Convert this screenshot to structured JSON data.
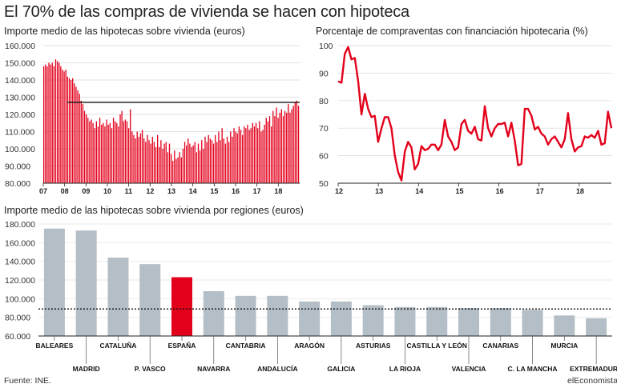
{
  "header": {
    "title": "El 70% de las compras de vivienda se hacen con hipoteca",
    "source": "Fuente: INE.",
    "brand": "elEconomista"
  },
  "colors": {
    "red": "#e3001b",
    "grey": "#b4bec6",
    "highlight": "#e3001b"
  },
  "chart_data": [
    {
      "type": "bar",
      "title": "Importe medio de las hipotecas sobre vivienda (euros)",
      "ylim": [
        80000,
        160000
      ],
      "y_ticks": [
        "160.000",
        "150.000",
        "140.000",
        "130.000",
        "120.000",
        "110.000",
        "100.000",
        "90.000",
        "80.000"
      ],
      "x_labels": [
        "07",
        "08",
        "09",
        "10",
        "11",
        "12",
        "13",
        "14",
        "15",
        "16",
        "17",
        "18"
      ],
      "reference_line": 127000,
      "values": [
        148000,
        149000,
        148000,
        150000,
        149000,
        150000,
        148000,
        152000,
        151000,
        150000,
        148000,
        146000,
        145000,
        146000,
        142000,
        141000,
        140000,
        141000,
        138000,
        136000,
        134000,
        132000,
        128000,
        126000,
        122000,
        120000,
        118000,
        116000,
        117000,
        115000,
        112000,
        116000,
        113000,
        118000,
        114000,
        115000,
        113000,
        117000,
        114000,
        115000,
        112000,
        118000,
        116000,
        115000,
        113000,
        120000,
        122000,
        116000,
        117000,
        116000,
        112000,
        123000,
        110000,
        108000,
        106000,
        110000,
        107000,
        109000,
        111000,
        106000,
        104000,
        108000,
        105000,
        103000,
        107000,
        104000,
        101000,
        108000,
        101000,
        105000,
        100000,
        103000,
        104000,
        98000,
        103000,
        97000,
        93000,
        99000,
        94000,
        95000,
        98000,
        95000,
        100000,
        104000,
        102000,
        106000,
        103000,
        101000,
        102000,
        104000,
        98000,
        103000,
        99000,
        105000,
        100000,
        107000,
        104000,
        108000,
        106000,
        105000,
        103000,
        108000,
        104000,
        110000,
        105000,
        112000,
        106000,
        103000,
        107000,
        104000,
        110000,
        107000,
        112000,
        110000,
        109000,
        113000,
        111000,
        108000,
        113000,
        112000,
        114000,
        111000,
        112000,
        115000,
        113000,
        115000,
        112000,
        116000,
        110000,
        111000,
        114000,
        118000,
        116000,
        119000,
        113000,
        122000,
        119000,
        124000,
        118000,
        121000,
        123000,
        119000,
        122000,
        121000,
        126000,
        121000,
        123000,
        125000,
        127000,
        128000,
        125000
      ]
    },
    {
      "type": "line",
      "title": "Porcentaje de compraventas con financiación hipotecaria (%)",
      "ylim": [
        50,
        100
      ],
      "y_ticks": [
        "100",
        "90",
        "80",
        "70",
        "60",
        "50"
      ],
      "x_labels": [
        "12",
        "13",
        "14",
        "15",
        "16",
        "17",
        "18"
      ],
      "values": [
        87,
        86.5,
        97,
        99.5,
        95,
        95.5,
        87,
        75,
        82.5,
        77,
        74,
        74.5,
        65,
        70,
        74,
        74,
        70,
        60,
        54,
        51,
        61.5,
        65,
        63,
        55,
        57,
        63.5,
        62,
        62.5,
        64,
        64,
        62,
        64,
        73,
        67,
        65,
        62,
        63,
        71.5,
        73,
        69,
        68,
        70.5,
        66,
        65.5,
        78,
        70,
        67,
        70,
        71.5,
        71.5,
        72,
        67,
        72,
        65.5,
        56.5,
        57,
        77,
        77,
        74.5,
        69.5,
        70.5,
        68,
        67,
        64,
        66,
        67,
        65,
        63,
        66,
        75.5,
        66,
        61.5,
        63,
        63.5,
        67,
        66.5,
        67.5,
        66.5,
        69,
        64,
        64.5,
        76,
        70
      ]
    },
    {
      "type": "bar",
      "title": "Importe medio de las hipotecas sobre vivienda por regiones (euros)",
      "ylim": [
        60000,
        180000
      ],
      "y_ticks": [
        "180.000",
        "160.000",
        "140.000",
        "120.000",
        "100.000",
        "80.000",
        "60.000"
      ],
      "reference_line": 89000,
      "highlight": "ESPAÑA",
      "categories": [
        "BALEARES",
        "MADRID",
        "CATALUÑA",
        "P. VASCO",
        "ESPAÑA",
        "NAVARRA",
        "CANTABRIA",
        "ANDALUCÍA",
        "ARAGÓN",
        "GALICIA",
        "ASTURIAS",
        "LA RIOJA",
        "CASTILLA Y LEÓN",
        "VALENCIA",
        "CANARIAS",
        "C. LA MANCHA",
        "MURCIA",
        "EXTREMADURA"
      ],
      "values": [
        175000,
        173000,
        144000,
        137000,
        123000,
        108000,
        103000,
        103000,
        97000,
        97000,
        93000,
        91000,
        91000,
        90000,
        90000,
        88000,
        82000,
        79000
      ]
    }
  ]
}
